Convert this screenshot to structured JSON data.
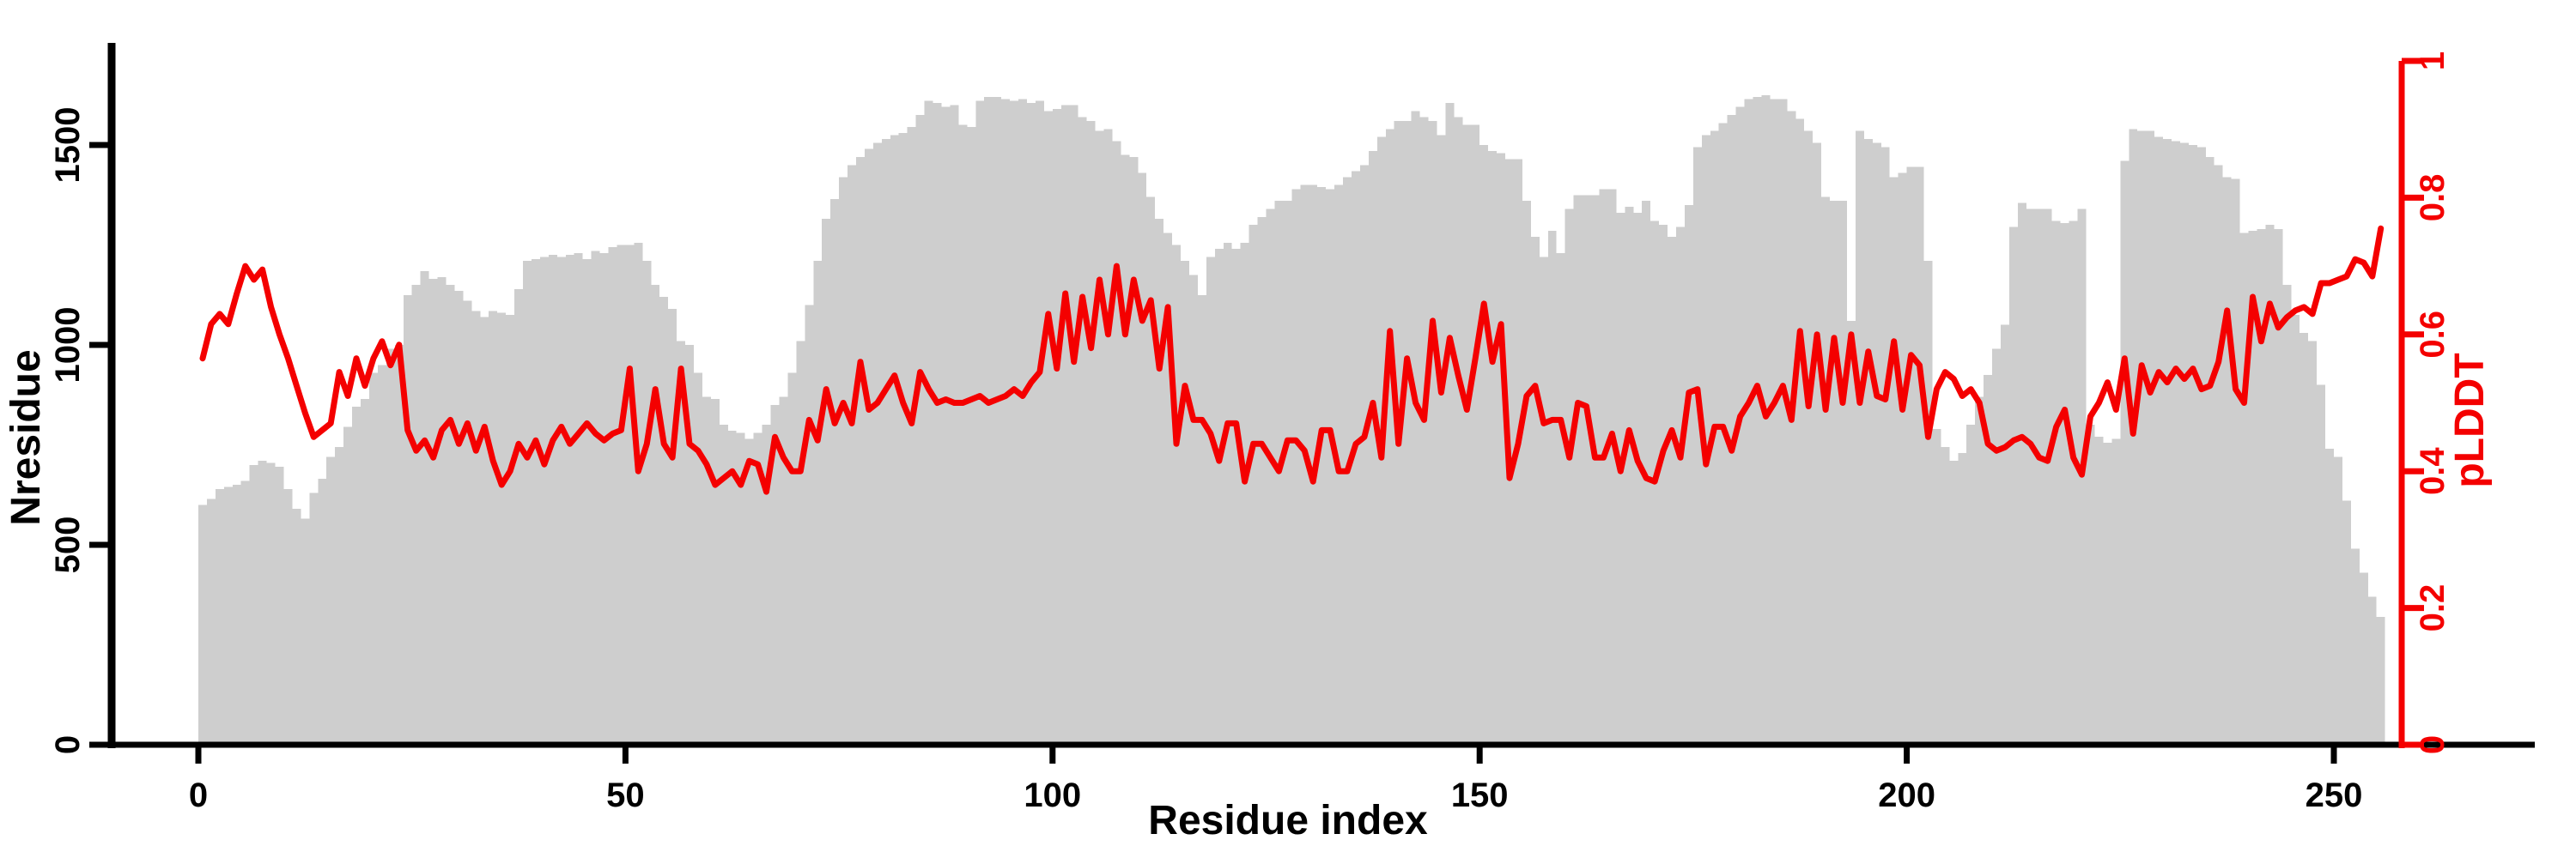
{
  "figure": {
    "background": "#ffffff",
    "bar_color": "#cecece",
    "line_color": "#f40000",
    "axis_color": "#000000"
  },
  "chart_data": {
    "type": "bar",
    "title": "",
    "xlabel": "Residue index",
    "x_range": [
      0,
      255
    ],
    "x_ticks": [
      0,
      50,
      100,
      150,
      200,
      250
    ],
    "grid": false,
    "legend": "none",
    "left_axis": {
      "label": "Nresidue",
      "ticks": [
        0,
        500,
        1000,
        1500
      ],
      "range": [
        0,
        1700
      ],
      "color": "#000000"
    },
    "right_axis": {
      "label": "pLDDT",
      "ticks": [
        0,
        0.2,
        0.4,
        0.6,
        0.8,
        1
      ],
      "range": [
        0,
        1
      ],
      "color": "#f40000"
    },
    "series": [
      {
        "name": "Nresidue",
        "type": "bar",
        "axis": "left",
        "color": "#cecece",
        "values": [
          600,
          615,
          640,
          645,
          650,
          660,
          700,
          710,
          705,
          695,
          640,
          590,
          565,
          630,
          665,
          720,
          745,
          795,
          845,
          865,
          930,
          950,
          990,
          1000,
          1125,
          1150,
          1185,
          1165,
          1170,
          1150,
          1135,
          1110,
          1085,
          1070,
          1085,
          1080,
          1075,
          1140,
          1210,
          1215,
          1220,
          1225,
          1220,
          1225,
          1230,
          1215,
          1235,
          1230,
          1245,
          1250,
          1250,
          1255,
          1210,
          1150,
          1120,
          1090,
          1010,
          1000,
          930,
          870,
          865,
          800,
          785,
          780,
          765,
          780,
          800,
          850,
          870,
          930,
          1010,
          1100,
          1210,
          1315,
          1365,
          1420,
          1450,
          1470,
          1490,
          1505,
          1515,
          1525,
          1530,
          1545,
          1575,
          1610,
          1605,
          1595,
          1600,
          1550,
          1545,
          1610,
          1620,
          1620,
          1615,
          1610,
          1615,
          1605,
          1610,
          1585,
          1590,
          1600,
          1600,
          1570,
          1560,
          1535,
          1540,
          1510,
          1475,
          1470,
          1430,
          1370,
          1315,
          1280,
          1250,
          1210,
          1175,
          1125,
          1220,
          1240,
          1255,
          1240,
          1255,
          1300,
          1320,
          1340,
          1360,
          1360,
          1390,
          1400,
          1400,
          1395,
          1390,
          1400,
          1420,
          1435,
          1450,
          1485,
          1520,
          1540,
          1560,
          1560,
          1585,
          1570,
          1560,
          1525,
          1605,
          1570,
          1550,
          1550,
          1500,
          1485,
          1480,
          1465,
          1465,
          1360,
          1270,
          1220,
          1285,
          1230,
          1340,
          1375,
          1375,
          1375,
          1390,
          1390,
          1330,
          1345,
          1330,
          1360,
          1310,
          1300,
          1270,
          1295,
          1350,
          1495,
          1525,
          1535,
          1555,
          1575,
          1595,
          1615,
          1620,
          1625,
          1615,
          1615,
          1585,
          1565,
          1535,
          1505,
          1370,
          1360,
          1360,
          1060,
          1535,
          1515,
          1505,
          1495,
          1420,
          1430,
          1445,
          1445,
          1210,
          790,
          745,
          710,
          730,
          800,
          870,
          925,
          990,
          1050,
          1295,
          1355,
          1340,
          1340,
          1340,
          1310,
          1305,
          1310,
          1340,
          800,
          770,
          755,
          765,
          1460,
          1540,
          1535,
          1535,
          1520,
          1515,
          1510,
          1505,
          1500,
          1495,
          1470,
          1450,
          1420,
          1415,
          1280,
          1285,
          1290,
          1300,
          1290,
          1150,
          1075,
          1030,
          1010,
          900,
          740,
          720,
          610,
          490,
          430,
          370,
          320
        ]
      },
      {
        "name": "pLDDT",
        "type": "line",
        "axis": "right",
        "color": "#f40000",
        "values": [
          0.565,
          0.615,
          0.63,
          0.615,
          0.66,
          0.7,
          0.68,
          0.695,
          0.64,
          0.6,
          0.565,
          0.525,
          0.485,
          0.45,
          0.46,
          0.47,
          0.545,
          0.51,
          0.565,
          0.525,
          0.565,
          0.59,
          0.555,
          0.585,
          0.46,
          0.43,
          0.445,
          0.42,
          0.46,
          0.475,
          0.44,
          0.47,
          0.43,
          0.465,
          0.415,
          0.38,
          0.4,
          0.44,
          0.42,
          0.445,
          0.41,
          0.445,
          0.465,
          0.44,
          0.455,
          0.47,
          0.455,
          0.445,
          0.455,
          0.46,
          0.55,
          0.4,
          0.44,
          0.52,
          0.44,
          0.42,
          0.55,
          0.44,
          0.43,
          0.41,
          0.38,
          0.39,
          0.4,
          0.38,
          0.415,
          0.41,
          0.37,
          0.45,
          0.42,
          0.4,
          0.4,
          0.475,
          0.445,
          0.52,
          0.47,
          0.5,
          0.47,
          0.56,
          0.49,
          0.5,
          0.52,
          0.54,
          0.5,
          0.47,
          0.545,
          0.52,
          0.5,
          0.505,
          0.5,
          0.5,
          0.505,
          0.51,
          0.5,
          0.505,
          0.51,
          0.52,
          0.51,
          0.53,
          0.545,
          0.63,
          0.55,
          0.66,
          0.56,
          0.655,
          0.58,
          0.68,
          0.6,
          0.7,
          0.6,
          0.68,
          0.62,
          0.65,
          0.55,
          0.64,
          0.44,
          0.525,
          0.475,
          0.475,
          0.455,
          0.415,
          0.47,
          0.47,
          0.385,
          0.44,
          0.44,
          0.42,
          0.4,
          0.445,
          0.445,
          0.43,
          0.385,
          0.46,
          0.46,
          0.4,
          0.4,
          0.44,
          0.45,
          0.5,
          0.42,
          0.605,
          0.44,
          0.565,
          0.5,
          0.475,
          0.62,
          0.515,
          0.595,
          0.54,
          0.49,
          0.565,
          0.645,
          0.56,
          0.615,
          0.39,
          0.44,
          0.51,
          0.525,
          0.47,
          0.475,
          0.475,
          0.42,
          0.5,
          0.495,
          0.42,
          0.42,
          0.455,
          0.4,
          0.46,
          0.415,
          0.39,
          0.385,
          0.43,
          0.46,
          0.42,
          0.515,
          0.52,
          0.41,
          0.465,
          0.465,
          0.43,
          0.48,
          0.5,
          0.525,
          0.48,
          0.5,
          0.525,
          0.475,
          0.605,
          0.495,
          0.6,
          0.49,
          0.595,
          0.5,
          0.6,
          0.5,
          0.575,
          0.51,
          0.505,
          0.59,
          0.49,
          0.57,
          0.555,
          0.45,
          0.52,
          0.545,
          0.535,
          0.51,
          0.52,
          0.5,
          0.44,
          0.43,
          0.435,
          0.445,
          0.45,
          0.44,
          0.42,
          0.415,
          0.465,
          0.49,
          0.42,
          0.395,
          0.48,
          0.5,
          0.53,
          0.49,
          0.565,
          0.455,
          0.555,
          0.515,
          0.545,
          0.53,
          0.55,
          0.535,
          0.55,
          0.52,
          0.525,
          0.56,
          0.635,
          0.52,
          0.5,
          0.655,
          0.59,
          0.645,
          0.61,
          0.625,
          0.635,
          0.64,
          0.63,
          0.675,
          0.675,
          0.68,
          0.685,
          0.71,
          0.705,
          0.685,
          0.755
        ]
      }
    ]
  }
}
